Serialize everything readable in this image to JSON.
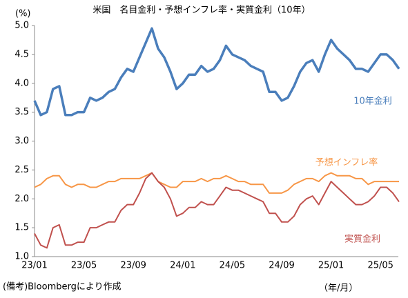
{
  "chart_data": {
    "type": "line",
    "title": "米国　名目金利・予想インフレ率・実質金利（10年）",
    "y_unit": "(%)",
    "x_unit": "（年/月）",
    "note": "(備考)Bloombergにより作成",
    "categories": [
      "23/01",
      null,
      null,
      null,
      null,
      null,
      null,
      null,
      "23/05",
      null,
      null,
      null,
      null,
      null,
      null,
      null,
      "23/09",
      null,
      null,
      null,
      null,
      null,
      null,
      null,
      "24/01",
      null,
      null,
      null,
      null,
      null,
      null,
      null,
      "24/05",
      null,
      null,
      null,
      null,
      null,
      null,
      null,
      "24/09",
      null,
      null,
      null,
      null,
      null,
      null,
      null,
      "25/01",
      null,
      null,
      null,
      null,
      null,
      null,
      null,
      "25/05",
      null,
      null,
      null
    ],
    "ylim": [
      1.0,
      5.0
    ],
    "yticks": [
      {
        "value": 1.0,
        "label": "1.0"
      },
      {
        "value": 1.5,
        "label": "1.5"
      },
      {
        "value": 2.0,
        "label": "2.0"
      },
      {
        "value": 2.5,
        "label": "2.5"
      },
      {
        "value": 3.0,
        "label": "3.0"
      },
      {
        "value": 3.5,
        "label": "3.5"
      },
      {
        "value": 4.0,
        "label": "4.0"
      },
      {
        "value": 4.5,
        "label": "4.5"
      },
      {
        "value": 5.0,
        "label": "5.0"
      }
    ],
    "grid": false,
    "series": [
      {
        "name": "10年金利",
        "color": "#4a7ebb",
        "values": [
          3.7,
          3.45,
          3.5,
          3.9,
          3.95,
          3.45,
          3.45,
          3.5,
          3.5,
          3.75,
          3.7,
          3.75,
          3.85,
          3.9,
          4.1,
          4.25,
          4.2,
          4.45,
          4.7,
          4.95,
          4.6,
          4.45,
          4.2,
          3.9,
          4.0,
          4.15,
          4.15,
          4.3,
          4.2,
          4.25,
          4.4,
          4.65,
          4.5,
          4.45,
          4.4,
          4.3,
          4.25,
          4.2,
          3.85,
          3.85,
          3.7,
          3.75,
          3.95,
          4.2,
          4.35,
          4.4,
          4.2,
          4.5,
          4.75,
          4.6,
          4.5,
          4.4,
          4.25,
          4.25,
          4.2,
          4.35,
          4.5,
          4.5,
          4.4,
          4.25
        ]
      },
      {
        "name": "予想インフレ率",
        "color": "#f79646",
        "values": [
          2.2,
          2.25,
          2.35,
          2.4,
          2.4,
          2.25,
          2.2,
          2.25,
          2.25,
          2.2,
          2.2,
          2.25,
          2.3,
          2.3,
          2.35,
          2.35,
          2.35,
          2.35,
          2.4,
          2.45,
          2.3,
          2.25,
          2.2,
          2.2,
          2.3,
          2.3,
          2.3,
          2.35,
          2.3,
          2.35,
          2.35,
          2.4,
          2.35,
          2.3,
          2.3,
          2.25,
          2.25,
          2.25,
          2.1,
          2.1,
          2.1,
          2.15,
          2.25,
          2.3,
          2.35,
          2.35,
          2.3,
          2.4,
          2.45,
          2.4,
          2.4,
          2.4,
          2.35,
          2.35,
          2.25,
          2.3,
          2.3,
          2.3,
          2.3,
          2.3
        ]
      },
      {
        "name": "実質金利",
        "color": "#c0504d",
        "values": [
          1.4,
          1.2,
          1.15,
          1.5,
          1.55,
          1.2,
          1.2,
          1.25,
          1.25,
          1.5,
          1.5,
          1.55,
          1.6,
          1.6,
          1.8,
          1.9,
          1.9,
          2.1,
          2.35,
          2.45,
          2.3,
          2.2,
          2.0,
          1.7,
          1.75,
          1.85,
          1.85,
          1.95,
          1.9,
          1.9,
          2.05,
          2.2,
          2.15,
          2.15,
          2.1,
          2.05,
          2.0,
          1.95,
          1.75,
          1.75,
          1.6,
          1.6,
          1.7,
          1.9,
          2.0,
          2.05,
          1.9,
          2.1,
          2.3,
          2.2,
          2.1,
          2.0,
          1.9,
          1.9,
          1.95,
          2.05,
          2.2,
          2.2,
          2.1,
          1.95
        ]
      }
    ]
  }
}
